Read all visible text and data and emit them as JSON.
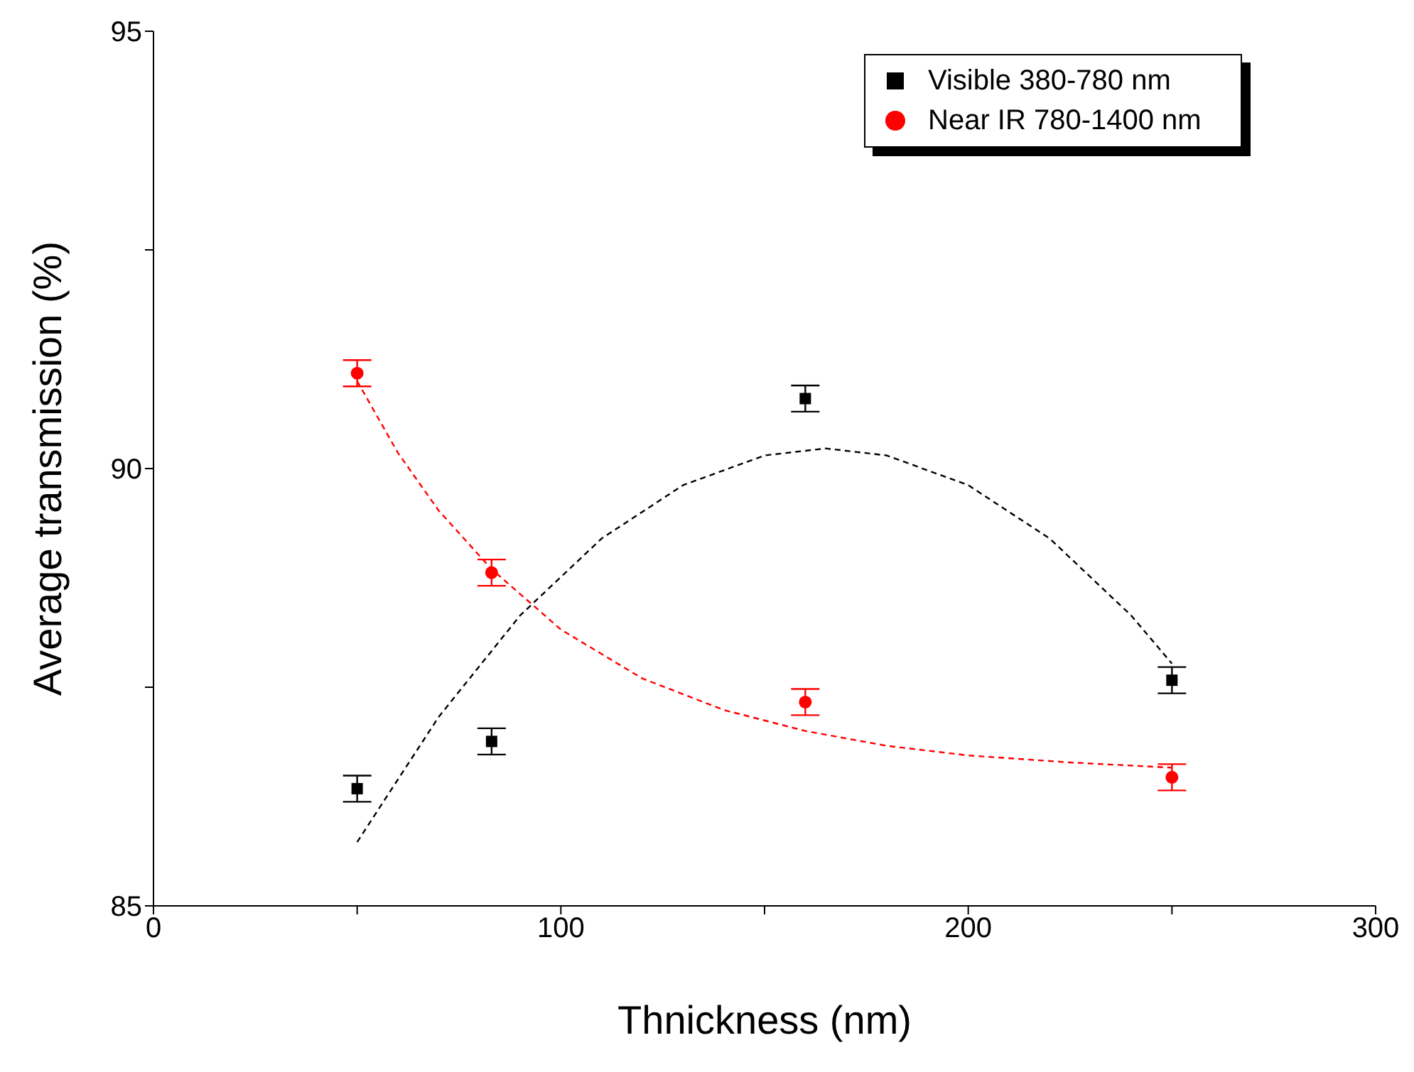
{
  "chart_data": {
    "type": "scatter",
    "xlabel": "Thnickness (nm)",
    "ylabel": "Average transmission (%)",
    "xlim": [
      0,
      300
    ],
    "xticks": [
      0,
      {
        "value": 50,
        "label": null
      },
      100,
      {
        "value": 150,
        "label": null
      },
      200,
      {
        "value": 250,
        "label": null
      },
      300
    ],
    "ylim": [
      85,
      95
    ],
    "yticks": [
      85,
      {
        "value": 87.5,
        "label": null
      },
      90,
      {
        "value": 92.5,
        "label": null
      },
      95
    ],
    "grid": false,
    "legend": "top right",
    "series": [
      {
        "name": "Visible 380-780 nm",
        "marker": "square",
        "color": "#000000",
        "x": [
          50,
          83,
          160,
          250
        ],
        "values": [
          86.34,
          86.88,
          90.8,
          87.58
        ],
        "errors": [
          0.15,
          0.15,
          0.15,
          0.15
        ]
      },
      {
        "name": "Near IR 780-1400 nm",
        "marker": "circle",
        "color": "#ff0000",
        "x": [
          50,
          83,
          160,
          250
        ],
        "values": [
          91.09,
          88.81,
          87.33,
          86.47
        ],
        "errors": [
          0.15,
          0.15,
          0.15,
          0.15
        ]
      },
      {
        "type": "line",
        "line_style": "dashed",
        "marker": "none",
        "color": "#000000",
        "x": [
          50,
          70,
          90,
          110,
          130,
          150,
          165,
          180,
          200,
          220,
          240,
          250
        ],
        "values": [
          85.73,
          87.16,
          88.32,
          89.2,
          89.81,
          90.15,
          90.23,
          90.15,
          89.81,
          89.2,
          88.32,
          87.77
        ]
      },
      {
        "type": "line",
        "line_style": "dashed",
        "marker": "none",
        "color": "#ff0000",
        "x": [
          50,
          60,
          70,
          83,
          100,
          120,
          140,
          160,
          180,
          200,
          225,
          250
        ],
        "values": [
          91.0,
          90.18,
          89.52,
          88.85,
          88.16,
          87.6,
          87.24,
          87.0,
          86.83,
          86.72,
          86.64,
          86.58
        ]
      }
    ]
  }
}
